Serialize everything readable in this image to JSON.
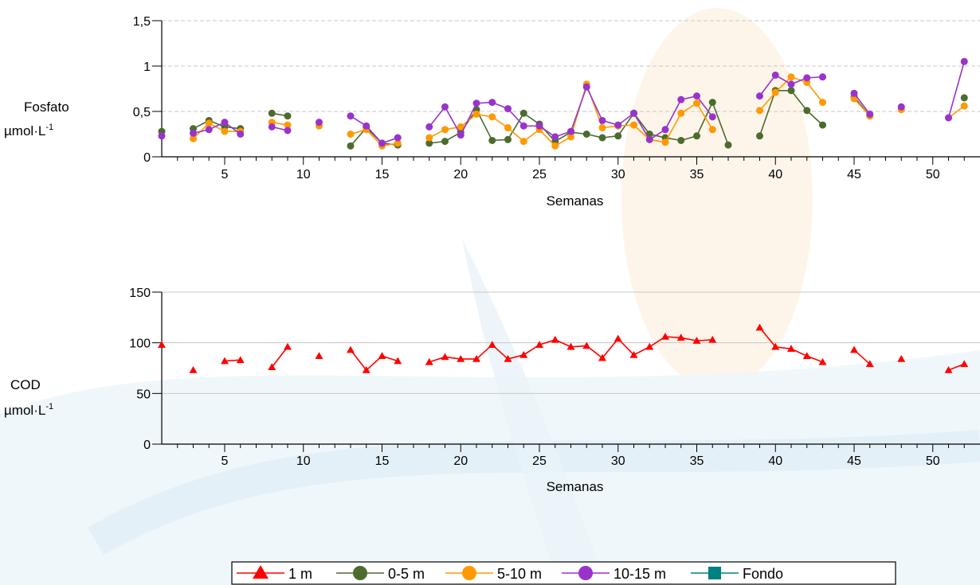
{
  "chart_data": [
    {
      "type": "line",
      "ylabel": "Fosfato",
      "yunit_main": "µmol·L",
      "yunit_sup": "-1",
      "xlabel": "Semanas",
      "xlim": [
        1,
        53
      ],
      "ylim": [
        0,
        1.5
      ],
      "yticks": [
        0,
        0.5,
        1,
        1.5
      ],
      "ytick_labels": [
        "0",
        "0,5",
        "1",
        "1,5"
      ],
      "xticks": [
        5,
        10,
        15,
        20,
        25,
        30,
        35,
        40,
        45,
        50
      ],
      "grid": "horizontal dashed",
      "series": [
        {
          "name": "0-5 m",
          "color": "#4d6b2e",
          "marker": "circle",
          "segments": [
            [
              [
                1,
                0.28
              ]
            ],
            [
              [
                3,
                0.31
              ],
              [
                4,
                0.4
              ],
              [
                5,
                0.33
              ],
              [
                6,
                0.31
              ]
            ],
            [
              [
                8,
                0.48
              ],
              [
                9,
                0.45
              ]
            ],
            [
              [
                13,
                0.12
              ],
              [
                14,
                0.32
              ],
              [
                15,
                0.15
              ],
              [
                16,
                0.13
              ]
            ],
            [
              [
                18,
                0.15
              ],
              [
                19,
                0.17
              ],
              [
                20,
                0.27
              ],
              [
                21,
                0.52
              ],
              [
                22,
                0.18
              ],
              [
                23,
                0.19
              ],
              [
                24,
                0.48
              ],
              [
                25,
                0.36
              ],
              [
                26,
                0.17
              ],
              [
                27,
                0.27
              ],
              [
                28,
                0.25
              ],
              [
                29,
                0.21
              ],
              [
                30,
                0.23
              ],
              [
                31,
                0.48
              ],
              [
                32,
                0.25
              ],
              [
                33,
                0.21
              ],
              [
                34,
                0.18
              ],
              [
                35,
                0.23
              ],
              [
                36,
                0.6
              ],
              [
                37,
                0.13
              ]
            ],
            [
              [
                39,
                0.23
              ],
              [
                40,
                0.73
              ],
              [
                41,
                0.73
              ],
              [
                42,
                0.51
              ],
              [
                43,
                0.35
              ]
            ],
            [
              [
                45,
                0.66
              ],
              [
                46,
                0.45
              ]
            ],
            [
              [
                52,
                0.65
              ]
            ]
          ]
        },
        {
          "name": "5-10 m",
          "color": "#ff9900",
          "marker": "circle",
          "segments": [
            [
              [
                3,
                0.2
              ],
              [
                4,
                0.37
              ],
              [
                5,
                0.28
              ],
              [
                6,
                0.28
              ]
            ],
            [
              [
                8,
                0.38
              ],
              [
                9,
                0.35
              ]
            ],
            [
              [
                11,
                0.34
              ]
            ],
            [
              [
                13,
                0.25
              ],
              [
                14,
                0.3
              ],
              [
                15,
                0.12
              ],
              [
                16,
                0.15
              ]
            ],
            [
              [
                18,
                0.21
              ],
              [
                19,
                0.3
              ],
              [
                20,
                0.33
              ],
              [
                21,
                0.47
              ],
              [
                22,
                0.44
              ],
              [
                23,
                0.32
              ],
              [
                24,
                0.17
              ],
              [
                25,
                0.3
              ],
              [
                26,
                0.12
              ],
              [
                27,
                0.22
              ],
              [
                28,
                0.8
              ],
              [
                29,
                0.32
              ],
              [
                30,
                0.34
              ],
              [
                31,
                0.35
              ],
              [
                32,
                0.19
              ],
              [
                33,
                0.16
              ],
              [
                34,
                0.48
              ],
              [
                35,
                0.59
              ],
              [
                36,
                0.3
              ]
            ],
            [
              [
                39,
                0.51
              ],
              [
                40,
                0.71
              ],
              [
                41,
                0.88
              ],
              [
                42,
                0.82
              ],
              [
                43,
                0.6
              ]
            ],
            [
              [
                45,
                0.64
              ],
              [
                46,
                0.45
              ]
            ],
            [
              [
                48,
                0.52
              ]
            ],
            [
              [
                51,
                0.43
              ],
              [
                52,
                0.56
              ]
            ]
          ]
        },
        {
          "name": "10-15 m",
          "color": "#9933cc",
          "marker": "circle",
          "segments": [
            [
              [
                1,
                0.23
              ]
            ],
            [
              [
                3,
                0.26
              ],
              [
                4,
                0.3
              ],
              [
                5,
                0.38
              ],
              [
                6,
                0.25
              ]
            ],
            [
              [
                8,
                0.33
              ],
              [
                9,
                0.29
              ]
            ],
            [
              [
                11,
                0.38
              ]
            ],
            [
              [
                13,
                0.45
              ],
              [
                14,
                0.34
              ],
              [
                15,
                0.15
              ],
              [
                16,
                0.21
              ]
            ],
            [
              [
                18,
                0.33
              ],
              [
                19,
                0.55
              ],
              [
                20,
                0.24
              ],
              [
                21,
                0.59
              ],
              [
                22,
                0.6
              ],
              [
                23,
                0.53
              ],
              [
                24,
                0.34
              ],
              [
                25,
                0.34
              ],
              [
                26,
                0.22
              ],
              [
                27,
                0.28
              ],
              [
                28,
                0.77
              ],
              [
                29,
                0.4
              ],
              [
                30,
                0.35
              ],
              [
                31,
                0.48
              ],
              [
                32,
                0.19
              ],
              [
                33,
                0.3
              ],
              [
                34,
                0.63
              ],
              [
                35,
                0.67
              ],
              [
                36,
                0.44
              ]
            ],
            [
              [
                39,
                0.67
              ],
              [
                40,
                0.9
              ],
              [
                41,
                0.8
              ],
              [
                42,
                0.87
              ],
              [
                43,
                0.88
              ]
            ],
            [
              [
                45,
                0.7
              ],
              [
                46,
                0.47
              ]
            ],
            [
              [
                48,
                0.55
              ]
            ],
            [
              [
                51,
                0.43
              ],
              [
                52,
                1.05
              ]
            ]
          ]
        }
      ]
    },
    {
      "type": "line",
      "ylabel": "COD",
      "yunit_main": "µmol·L",
      "yunit_sup": "-1",
      "xlabel": "Semanas",
      "xlim": [
        1,
        53
      ],
      "ylim": [
        0,
        150
      ],
      "yticks": [
        0,
        50,
        100,
        150
      ],
      "ytick_labels": [
        "0",
        "50",
        "100",
        "150"
      ],
      "xticks": [
        5,
        10,
        15,
        20,
        25,
        30,
        35,
        40,
        45,
        50
      ],
      "grid": "horizontal solid",
      "series": [
        {
          "name": "1 m",
          "color": "#ff0000",
          "marker": "triangle",
          "segments": [
            [
              [
                1,
                98
              ]
            ],
            [
              [
                3,
                73
              ]
            ],
            [
              [
                5,
                82
              ],
              [
                6,
                83
              ]
            ],
            [
              [
                8,
                76
              ],
              [
                9,
                96
              ]
            ],
            [
              [
                11,
                87
              ]
            ],
            [
              [
                13,
                93
              ],
              [
                14,
                73
              ],
              [
                15,
                87
              ],
              [
                16,
                82
              ]
            ],
            [
              [
                18,
                81
              ],
              [
                19,
                86
              ],
              [
                20,
                84
              ],
              [
                21,
                84
              ],
              [
                22,
                98
              ],
              [
                23,
                84
              ],
              [
                24,
                88
              ],
              [
                25,
                98
              ],
              [
                26,
                103
              ],
              [
                27,
                96
              ],
              [
                28,
                97
              ],
              [
                29,
                85
              ],
              [
                30,
                104
              ],
              [
                31,
                88
              ],
              [
                32,
                96
              ],
              [
                33,
                106
              ],
              [
                34,
                105
              ],
              [
                35,
                102
              ],
              [
                36,
                103
              ]
            ],
            [
              [
                39,
                115
              ],
              [
                40,
                96
              ],
              [
                41,
                94
              ],
              [
                42,
                87
              ],
              [
                43,
                81
              ]
            ],
            [
              [
                45,
                93
              ],
              [
                46,
                79
              ]
            ],
            [
              [
                48,
                84
              ]
            ],
            [
              [
                51,
                73
              ],
              [
                52,
                79
              ]
            ]
          ]
        }
      ]
    }
  ],
  "legend": [
    {
      "name": "1 m",
      "color": "#ff0000",
      "marker": "triangle"
    },
    {
      "name": "0-5 m",
      "color": "#4d6b2e",
      "marker": "circle"
    },
    {
      "name": "5-10 m",
      "color": "#ff9900",
      "marker": "circle"
    },
    {
      "name": "10-15 m",
      "color": "#9933cc",
      "marker": "circle"
    },
    {
      "name": "Fondo",
      "color": "#008080",
      "marker": "square"
    }
  ]
}
